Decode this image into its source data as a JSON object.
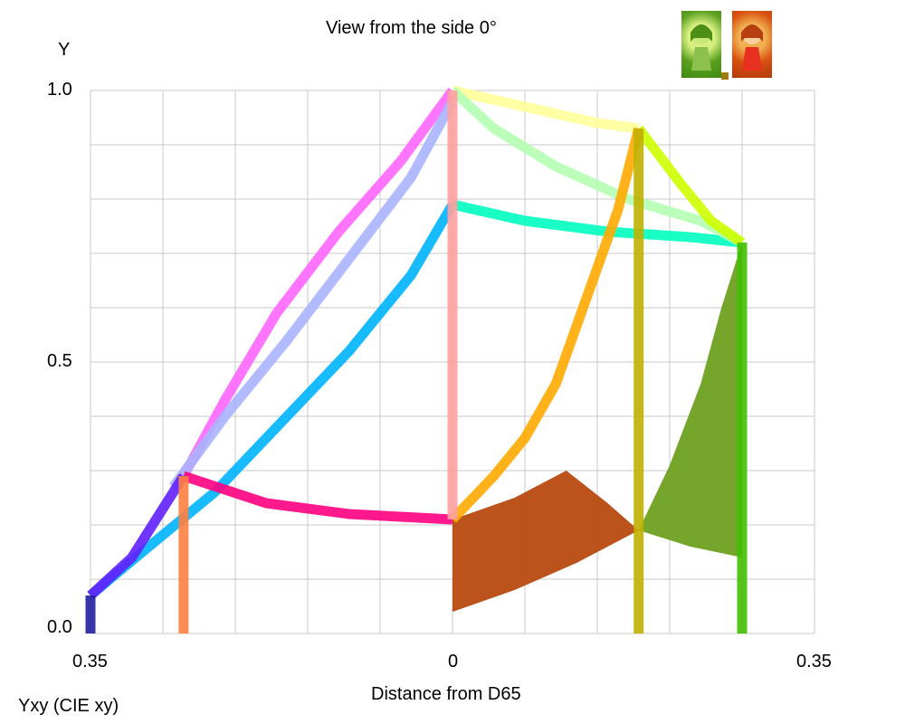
{
  "title": "View from the side 0°",
  "footer_label": "Yxy (CIE xy)",
  "chart_data": {
    "type": "line",
    "title": "View from the side 0°",
    "xlabel": "Distance from D65",
    "ylabel": "Y",
    "xlim": [
      -0.35,
      0.35
    ],
    "ylim": [
      0,
      1
    ],
    "x_tick_labels": [
      "0.35",
      "0",
      "0.35"
    ],
    "y_tick_labels": [
      "0.0",
      "0.5",
      "1.0"
    ],
    "grid": true,
    "series": [
      {
        "color": "#ff66ff",
        "points": [
          [
            -0.26,
            0.29
          ],
          [
            -0.22,
            0.43
          ],
          [
            -0.17,
            0.59
          ],
          [
            -0.11,
            0.74
          ],
          [
            -0.05,
            0.87
          ],
          [
            0,
            1.0
          ]
        ]
      },
      {
        "color": "#aab4ff",
        "points": [
          [
            -0.27,
            0.27
          ],
          [
            -0.22,
            0.4
          ],
          [
            -0.16,
            0.54
          ],
          [
            -0.1,
            0.69
          ],
          [
            -0.04,
            0.84
          ],
          [
            0,
            0.98
          ]
        ]
      },
      {
        "color": "#00b4ff",
        "points": [
          [
            -0.35,
            0.07
          ],
          [
            -0.3,
            0.15
          ],
          [
            -0.23,
            0.26
          ],
          [
            -0.16,
            0.4
          ],
          [
            -0.1,
            0.52
          ],
          [
            -0.04,
            0.66
          ],
          [
            0,
            0.79
          ]
        ]
      },
      {
        "color": "#6020ff",
        "points": [
          [
            -0.35,
            0.07
          ],
          [
            -0.31,
            0.14
          ],
          [
            -0.26,
            0.29
          ]
        ]
      },
      {
        "color": "#ff0080",
        "points": [
          [
            -0.26,
            0.29
          ],
          [
            -0.18,
            0.24
          ],
          [
            -0.1,
            0.22
          ],
          [
            0,
            0.21
          ]
        ]
      },
      {
        "color": "#00ffc0",
        "points": [
          [
            0,
            0.79
          ],
          [
            0.07,
            0.76
          ],
          [
            0.15,
            0.74
          ],
          [
            0.23,
            0.73
          ],
          [
            0.28,
            0.72
          ]
        ]
      },
      {
        "color": "#ffff99",
        "points": [
          [
            0,
            1.0
          ],
          [
            0.07,
            0.97
          ],
          [
            0.14,
            0.94
          ],
          [
            0.18,
            0.93
          ]
        ]
      },
      {
        "color": "#b4ffb4",
        "points": [
          [
            0,
            1.0
          ],
          [
            0.04,
            0.93
          ],
          [
            0.1,
            0.86
          ],
          [
            0.17,
            0.8
          ],
          [
            0.24,
            0.76
          ],
          [
            0.28,
            0.72
          ]
        ]
      },
      {
        "color": "#ccff00",
        "points": [
          [
            0.18,
            0.93
          ],
          [
            0.22,
            0.83
          ],
          [
            0.25,
            0.76
          ],
          [
            0.28,
            0.72
          ]
        ]
      },
      {
        "color": "#ffaa00",
        "points": [
          [
            0.18,
            0.93
          ],
          [
            0.16,
            0.78
          ],
          [
            0.13,
            0.62
          ],
          [
            0.1,
            0.46
          ],
          [
            0.07,
            0.36
          ],
          [
            0.04,
            0.29
          ],
          [
            0,
            0.21
          ]
        ]
      },
      {
        "color": "#ff8040",
        "points": [
          [
            -0.26,
            0.29
          ],
          [
            -0.26,
            0.0
          ]
        ]
      },
      {
        "color": "#ffa0a0",
        "points": [
          [
            0,
            1.0
          ],
          [
            0,
            0.21
          ]
        ]
      },
      {
        "color": "#c0b000",
        "points": [
          [
            0.18,
            0.93
          ],
          [
            0.18,
            0.0
          ]
        ]
      },
      {
        "color": "#40c000",
        "points": [
          [
            0.28,
            0.72
          ],
          [
            0.28,
            0.0
          ]
        ]
      },
      {
        "color": "#2020a0",
        "points": [
          [
            -0.35,
            0.07
          ],
          [
            -0.35,
            0.0
          ]
        ]
      }
    ],
    "filled_regions": [
      {
        "color": "#b84a10",
        "points": [
          [
            0,
            0.21
          ],
          [
            0.06,
            0.25
          ],
          [
            0.11,
            0.3
          ],
          [
            0.15,
            0.24
          ],
          [
            0.18,
            0.19
          ],
          [
            0.12,
            0.13
          ],
          [
            0.06,
            0.08
          ],
          [
            0,
            0.04
          ]
        ]
      },
      {
        "color": "#6ea020",
        "points": [
          [
            0.18,
            0.19
          ],
          [
            0.21,
            0.31
          ],
          [
            0.24,
            0.46
          ],
          [
            0.26,
            0.6
          ],
          [
            0.28,
            0.72
          ],
          [
            0.28,
            0.14
          ],
          [
            0.23,
            0.16
          ]
        ]
      }
    ]
  }
}
